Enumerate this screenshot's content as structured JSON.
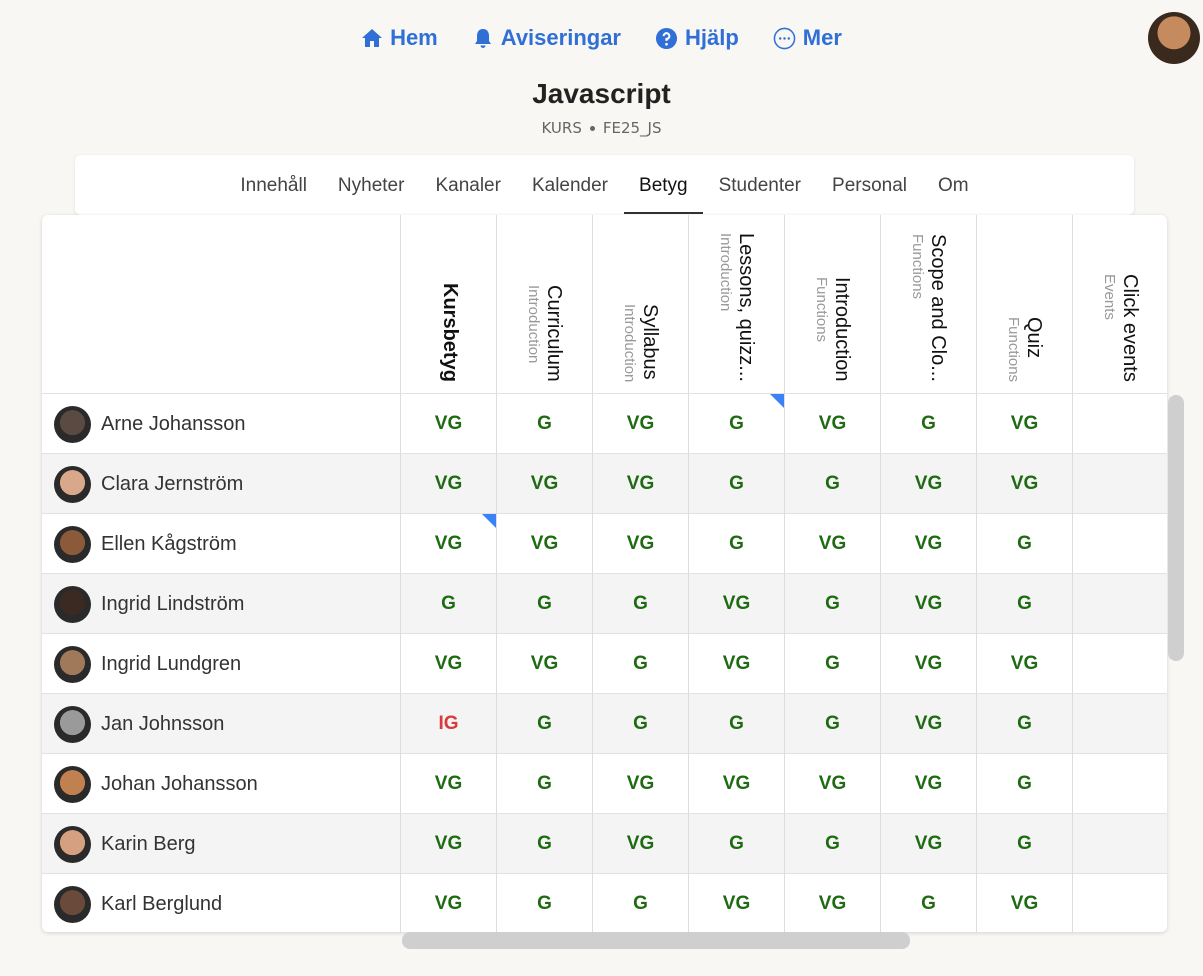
{
  "nav": [
    "Hem",
    "Aviseringar",
    "Hjälp",
    "Mer"
  ],
  "header": {
    "title": "Javascript",
    "kicker": "KURS",
    "code": "FE25_JS"
  },
  "tabs": {
    "items": [
      "Innehåll",
      "Nyheter",
      "Kanaler",
      "Kalender",
      "Betyg",
      "Studenter",
      "Personal",
      "Om"
    ],
    "active": 4
  },
  "table": {
    "columns": [
      {
        "name": "Kursbetyg"
      },
      {
        "group": "Introduction",
        "name": "Curriculum"
      },
      {
        "group": "Introduction",
        "name": "Syllabus"
      },
      {
        "group": "Introduction",
        "name": "Lessons, quizz..."
      },
      {
        "group": "Functions",
        "name": "Introduction"
      },
      {
        "group": "Functions",
        "name": "Scope and Clo..."
      },
      {
        "group": "Functions",
        "name": "Quiz"
      },
      {
        "group": "Events",
        "name": "Click events"
      }
    ],
    "rows": [
      {
        "name": "Arne Johansson",
        "grades": [
          "VG",
          "G",
          "VG",
          "G",
          "VG",
          "G",
          "VG"
        ]
      },
      {
        "name": "Clara Jernström",
        "grades": [
          "VG",
          "VG",
          "VG",
          "G",
          "G",
          "VG",
          "VG"
        ]
      },
      {
        "name": "Ellen Kågström",
        "grades": [
          "VG",
          "VG",
          "VG",
          "G",
          "VG",
          "VG",
          "G"
        ]
      },
      {
        "name": "Ingrid Lindström",
        "grades": [
          "G",
          "G",
          "G",
          "VG",
          "G",
          "VG",
          "G"
        ]
      },
      {
        "name": "Ingrid Lundgren",
        "grades": [
          "VG",
          "VG",
          "G",
          "VG",
          "G",
          "VG",
          "VG"
        ]
      },
      {
        "name": "Jan Johnsson",
        "grades": [
          "IG",
          "G",
          "G",
          "G",
          "G",
          "VG",
          "G"
        ]
      },
      {
        "name": "Johan Johansson",
        "grades": [
          "VG",
          "G",
          "VG",
          "VG",
          "VG",
          "VG",
          "G"
        ]
      },
      {
        "name": "Karin Berg",
        "grades": [
          "VG",
          "G",
          "VG",
          "G",
          "G",
          "VG",
          "G"
        ]
      },
      {
        "name": "Karl Berglund",
        "grades": [
          "VG",
          "G",
          "G",
          "VG",
          "VG",
          "G",
          "VG"
        ]
      }
    ],
    "flagged": [
      {
        "row": 0,
        "col": 3
      },
      {
        "row": 2,
        "col": 0
      }
    ],
    "grade_colors": {
      "VG": "#1e6b12",
      "G": "#1e6b12",
      "IG": "#d93a3a"
    }
  }
}
